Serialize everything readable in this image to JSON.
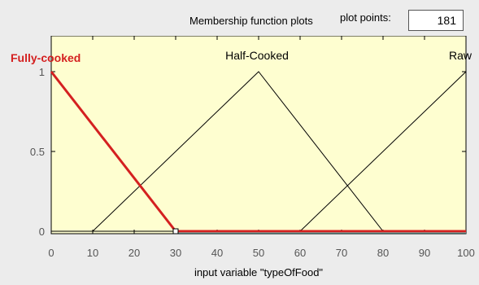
{
  "header": {
    "title": "Membership function plots",
    "plot_points_label": "plot points:",
    "plot_points_value": "181"
  },
  "chart_data": {
    "type": "line",
    "xlabel": "input variable \"typeOfFood\"",
    "xlim": [
      0,
      100
    ],
    "ylim": [
      0,
      1
    ],
    "xticks": [
      "0",
      "10",
      "20",
      "30",
      "40",
      "50",
      "60",
      "70",
      "80",
      "90",
      "100"
    ],
    "yticks": [
      "0",
      "0.5",
      "1"
    ],
    "background_color": "#fefed0",
    "selected_color": "#d42020",
    "series": [
      {
        "name": "Fully-cooked",
        "x": [
          0,
          30,
          100
        ],
        "y": [
          1,
          0,
          0
        ],
        "selected": true
      },
      {
        "name": "Half-Cooked",
        "x": [
          0,
          10,
          50,
          80,
          100
        ],
        "y": [
          0,
          0,
          1,
          0,
          0
        ],
        "selected": false
      },
      {
        "name": "Raw",
        "x": [
          0,
          60,
          100
        ],
        "y": [
          0,
          0,
          1
        ],
        "selected": false
      }
    ]
  }
}
